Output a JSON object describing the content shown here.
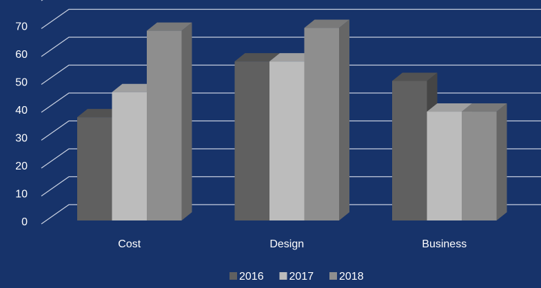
{
  "chart_data": {
    "type": "bar3d",
    "categories": [
      "Cost",
      "Design",
      "Business"
    ],
    "series": [
      {
        "name": "2016",
        "color": "#606060",
        "values": [
          37,
          57,
          50
        ]
      },
      {
        "name": "2017",
        "color": "#bcbcbc",
        "values": [
          46,
          57,
          39
        ]
      },
      {
        "name": "2018",
        "color": "#8e8e8e",
        "values": [
          68,
          69,
          39
        ]
      }
    ],
    "ylim": [
      0,
      80
    ],
    "yticks": [
      0,
      10,
      20,
      30,
      40,
      50,
      60,
      70
    ],
    "grid": true,
    "legend": "bottom"
  }
}
